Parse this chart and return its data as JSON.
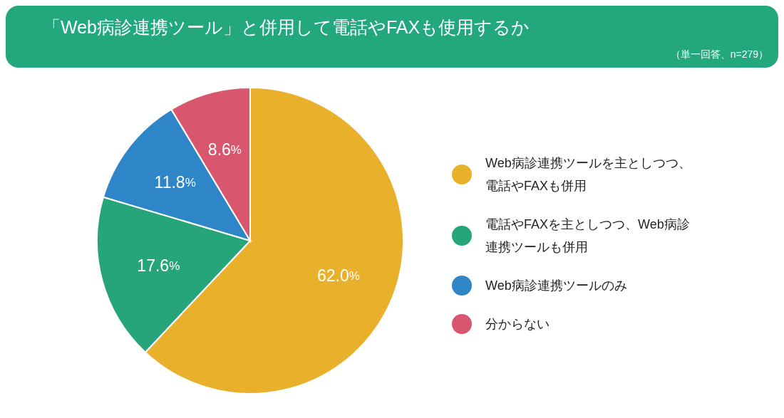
{
  "chart_data": {
    "type": "pie",
    "title": "「Web病診連携ツール」と併用して電話やFAXも使用するか",
    "subtitle": "（単一回答、n=279）",
    "categories": [
      "Web病診連携ツールを主としつつ、電話やFAXも併用",
      "電話やFAXを主としつつ、Web病診連携ツールも併用",
      "Web病診連携ツールのみ",
      "分からない"
    ],
    "values": [
      62.0,
      17.6,
      11.8,
      8.6
    ],
    "colors": [
      "#e9b02c",
      "#26a57a",
      "#2e86c8",
      "#d9566f"
    ],
    "value_labels": [
      "62.0%",
      "17.6%",
      "11.8%",
      "8.6%"
    ],
    "legend": "right"
  }
}
